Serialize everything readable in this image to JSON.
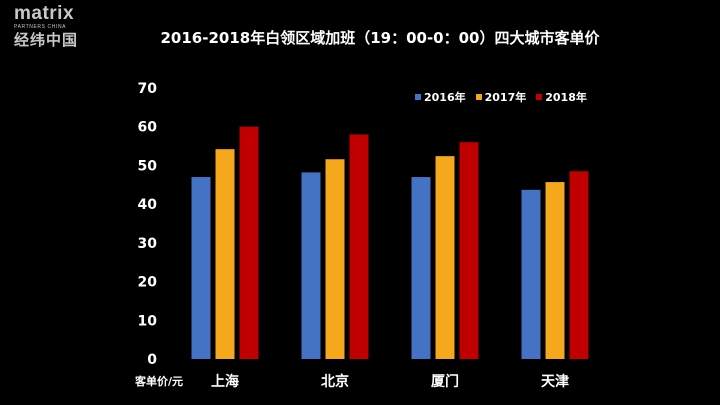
{
  "logo": {
    "word": "matrix",
    "subtitle": "PARTNERS CHINA",
    "chinese": "经纬中国"
  },
  "chart_data": {
    "type": "bar",
    "title": "2016-2018年白领区域加班（19：00-0：00）四大城市客单价",
    "xlabel": "客单价/元",
    "ylabel": "",
    "categories": [
      "上海",
      "北京",
      "厦门",
      "天津"
    ],
    "series": [
      {
        "name": "2016年",
        "color": "#4472c4",
        "values": [
          47,
          48.2,
          47,
          43.7
        ]
      },
      {
        "name": "2017年",
        "color": "#f5a81c",
        "values": [
          54.2,
          51.6,
          52.4,
          45.7
        ]
      },
      {
        "name": "2018年",
        "color": "#c00000",
        "values": [
          60,
          58,
          56,
          48.5
        ]
      }
    ],
    "ylim": [
      0,
      70
    ],
    "yticks": [
      0,
      10,
      20,
      30,
      40,
      50,
      60,
      70
    ],
    "grid": false,
    "legend_position": "top-right"
  }
}
